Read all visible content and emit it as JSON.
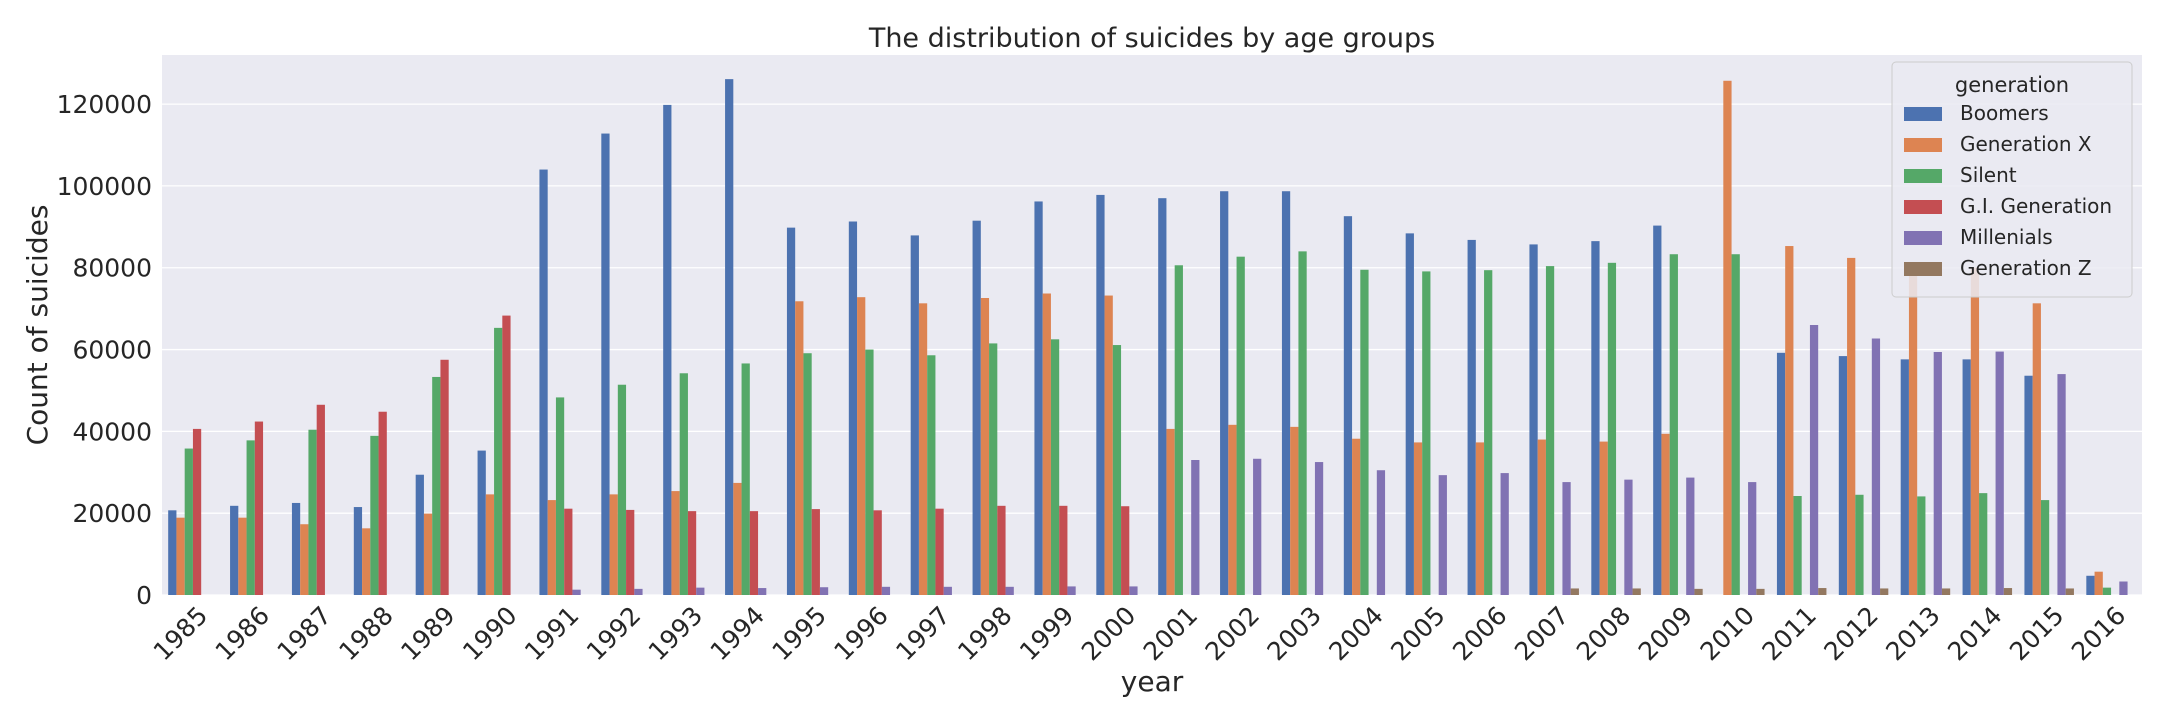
{
  "chart_data": {
    "type": "bar",
    "title": "The distribution of suicides by age groups",
    "xlabel": "year",
    "ylabel": "Count of suicides",
    "ylim": [
      0,
      132000
    ],
    "yticks": [
      0,
      20000,
      40000,
      60000,
      80000,
      100000,
      120000
    ],
    "grid": true,
    "legend_title": "generation",
    "legend_position": "top-right",
    "categories": [
      "1985",
      "1986",
      "1987",
      "1988",
      "1989",
      "1990",
      "1991",
      "1992",
      "1993",
      "1994",
      "1995",
      "1996",
      "1997",
      "1998",
      "1999",
      "2000",
      "2001",
      "2002",
      "2003",
      "2004",
      "2005",
      "2006",
      "2007",
      "2008",
      "2009",
      "2010",
      "2011",
      "2012",
      "2013",
      "2014",
      "2015",
      "2016"
    ],
    "series": [
      {
        "name": "Boomers",
        "color": "#4c72b0",
        "values": [
          20700,
          21800,
          22500,
          21500,
          29400,
          35300,
          104000,
          112800,
          119800,
          126100,
          89800,
          91300,
          87900,
          91500,
          96200,
          97800,
          97000,
          98700,
          98700,
          92600,
          88400,
          86800,
          85700,
          86500,
          90300,
          null,
          59200,
          58400,
          57600,
          57600,
          53600,
          4700
        ]
      },
      {
        "name": "Generation X",
        "color": "#dd8452",
        "values": [
          18900,
          18900,
          17300,
          16300,
          19900,
          24600,
          23200,
          24600,
          25400,
          27400,
          71800,
          72800,
          71300,
          72600,
          73700,
          73200,
          40600,
          41600,
          41100,
          38200,
          37300,
          37300,
          38000,
          37500,
          39400,
          125700,
          85300,
          82400,
          80000,
          80000,
          71300,
          5700
        ]
      },
      {
        "name": "Silent",
        "color": "#55a868",
        "values": [
          35800,
          37800,
          40400,
          38900,
          53300,
          65300,
          48300,
          51400,
          54200,
          56600,
          59100,
          60000,
          58600,
          61500,
          62500,
          61100,
          80600,
          82700,
          84000,
          79500,
          79100,
          79400,
          80400,
          81200,
          83300,
          83300,
          24200,
          24500,
          24100,
          24900,
          23200,
          1800
        ]
      },
      {
        "name": "G.I. Generation",
        "color": "#c44e52",
        "values": [
          40600,
          42400,
          46500,
          44800,
          57500,
          68300,
          21100,
          20800,
          20500,
          20500,
          21000,
          20700,
          21100,
          21800,
          21800,
          21700,
          null,
          null,
          null,
          null,
          null,
          null,
          null,
          null,
          null,
          null,
          null,
          null,
          null,
          null,
          null,
          null
        ]
      },
      {
        "name": "Millenials",
        "color": "#8172b3",
        "values": [
          null,
          null,
          null,
          null,
          null,
          null,
          1300,
          1500,
          1800,
          1700,
          1900,
          2000,
          2000,
          2000,
          2100,
          2100,
          33000,
          33300,
          32500,
          30500,
          29300,
          29800,
          27600,
          28200,
          28700,
          27600,
          66000,
          62700,
          59400,
          59500,
          54000,
          3300
        ]
      },
      {
        "name": "Generation Z",
        "color": "#937860",
        "values": [
          null,
          null,
          null,
          null,
          null,
          null,
          null,
          null,
          null,
          null,
          null,
          null,
          null,
          null,
          null,
          null,
          null,
          null,
          null,
          null,
          null,
          null,
          1600,
          1600,
          1500,
          1500,
          1700,
          1600,
          1600,
          1700,
          1600,
          null
        ]
      }
    ]
  }
}
